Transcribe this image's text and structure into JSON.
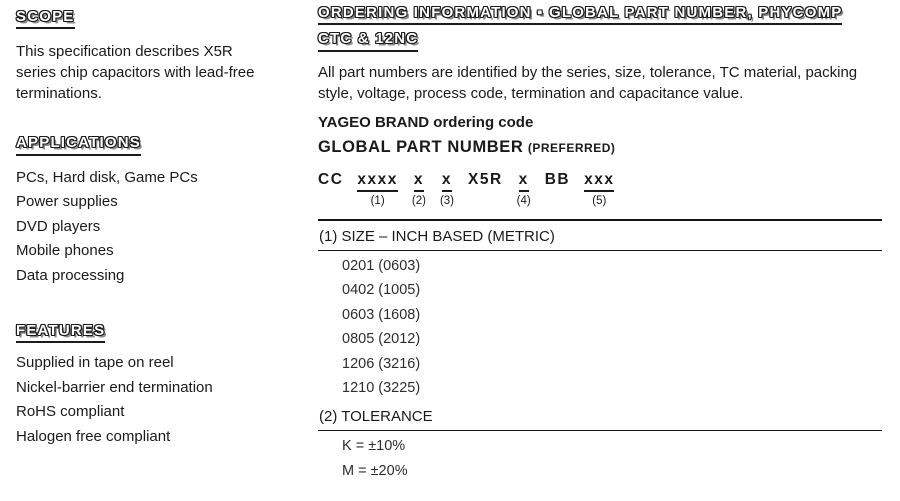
{
  "colors": {
    "text": "#1a1a1a",
    "background": "#ffffff"
  },
  "left": {
    "scope": {
      "heading": "SCOPE",
      "body": "This specification describes X5R series chip capacitors with lead-free terminations."
    },
    "applications": {
      "heading": "APPLICATIONS",
      "items": [
        "PCs, Hard disk, Game PCs",
        "Power supplies",
        "DVD players",
        "Mobile phones",
        "Data processing"
      ]
    },
    "features": {
      "heading": "FEATURES",
      "items": [
        "Supplied in tape on reel",
        "Nickel-barrier end termination",
        "RoHS compliant",
        "Halogen free compliant"
      ]
    }
  },
  "right": {
    "heading_line1": "ORDERING INFORMATION ▪ GLOBAL PART NUMBER, PHYCOMP",
    "heading_line2": "CTC & 12NC",
    "intro": "All part numbers are identified by the series, size, tolerance, TC material, packing style, voltage, process code, termination and capacitance value.",
    "brand_line": "YAGEO BRAND ordering code",
    "gpn_title": "GLOBAL PART NUMBER",
    "gpn_suffix": "(PREFERRED)",
    "part_number": {
      "segments": [
        {
          "text": "CC",
          "underline": false,
          "label": ""
        },
        {
          "text": "xxxx",
          "underline": true,
          "label": "(1)"
        },
        {
          "text": "x",
          "underline": true,
          "label": "(2)"
        },
        {
          "text": "x",
          "underline": true,
          "label": "(3)"
        },
        {
          "text": "X5R",
          "underline": false,
          "label": ""
        },
        {
          "text": "x",
          "underline": true,
          "label": "(4)"
        },
        {
          "text": "BB",
          "underline": false,
          "label": ""
        },
        {
          "text": "xxx",
          "underline": true,
          "label": "(5)"
        }
      ]
    },
    "sections": [
      {
        "title": "(1) SIZE – INCH BASED (METRIC)",
        "rows": [
          "0201 (0603)",
          "0402 (1005)",
          "0603 (1608)",
          "0805 (2012)",
          "1206 (3216)",
          "1210 (3225)"
        ]
      },
      {
        "title": "(2) TOLERANCE",
        "rows": [
          "K = ±10%",
          "M = ±20%"
        ]
      }
    ]
  }
}
